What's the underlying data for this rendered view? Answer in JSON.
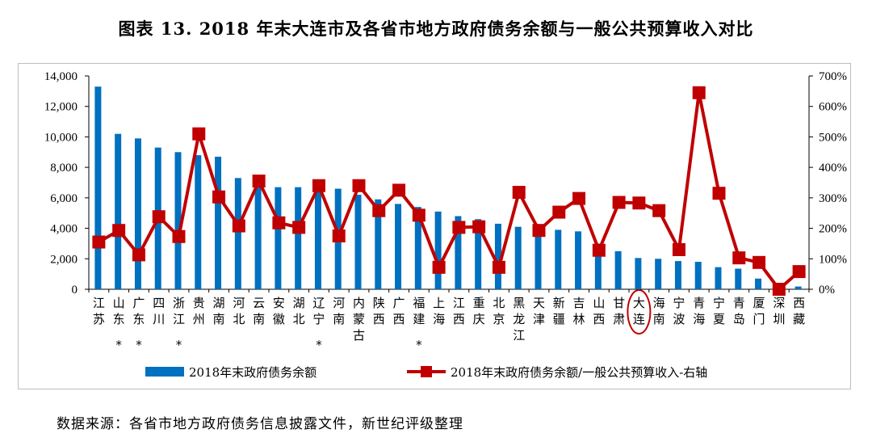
{
  "chart_data": {
    "type": "bar+line",
    "title": "图表 13. 2018 年末大连市及各省市地方政府债务余额与一般公共预算收入对比",
    "categories": [
      "江苏",
      "山东*",
      "广东*",
      "四川",
      "浙江*",
      "贵州",
      "湖南",
      "河北",
      "云南",
      "安徽",
      "湖北",
      "辽宁*",
      "河南",
      "内蒙古",
      "陕西",
      "广西",
      "福建*",
      "上海",
      "江西",
      "重庆",
      "北京",
      "黑龙江",
      "天津",
      "新疆",
      "吉林",
      "山西",
      "甘肃",
      "大连",
      "海南",
      "宁波",
      "青海",
      "宁夏",
      "青岛",
      "厦门",
      "深圳",
      "西藏"
    ],
    "series": [
      {
        "name": "2018年末政府债务余额",
        "type": "bar",
        "axis": "left",
        "color": "#0070C0",
        "values": [
          13300,
          10200,
          9900,
          9300,
          9000,
          8800,
          8700,
          7300,
          7100,
          6700,
          6700,
          6600,
          6600,
          6200,
          5900,
          5600,
          5400,
          5100,
          4800,
          4600,
          4300,
          4100,
          3800,
          3900,
          3800,
          3000,
          2500,
          2050,
          2000,
          1850,
          1800,
          1450,
          1350,
          700,
          200,
          180
        ]
      },
      {
        "name": "2018年末政府债务余额/一般公共预算收入-右轴",
        "type": "line",
        "axis": "right",
        "color": "#C00000",
        "values": [
          155,
          193,
          113,
          238,
          173,
          510,
          303,
          208,
          355,
          218,
          203,
          340,
          175,
          340,
          258,
          325,
          243,
          72,
          203,
          205,
          72,
          318,
          193,
          253,
          298,
          128,
          285,
          283,
          258,
          130,
          645,
          315,
          103,
          88,
          0,
          58
        ]
      }
    ],
    "yleft": {
      "min": 0,
      "max": 14000,
      "ticks": [
        "0",
        "2,000",
        "4,000",
        "6,000",
        "8,000",
        "10,000",
        "12,000",
        "14,000"
      ]
    },
    "yright": {
      "min": 0,
      "max": 700,
      "ticks": [
        "0%",
        "100%",
        "200%",
        "300%",
        "400%",
        "500%",
        "600%",
        "700%"
      ]
    },
    "highlight": "大连",
    "legend_position": "bottom"
  },
  "source": "数据来源：各省市地方政府债务信息披露文件，新世纪评级整理"
}
